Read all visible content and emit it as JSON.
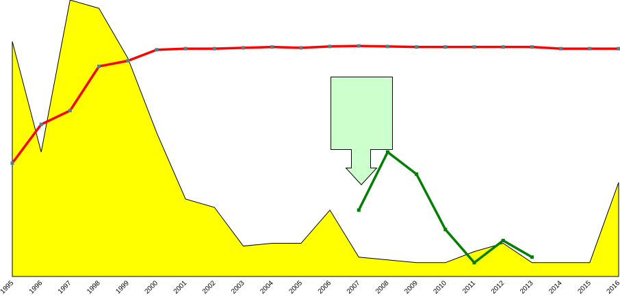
{
  "chart_data": {
    "type": "line",
    "x": [
      "1995",
      "1996",
      "1997",
      "1998",
      "1999",
      "2000",
      "2001",
      "2002",
      "2003",
      "2004",
      "2005",
      "2006",
      "2007",
      "2008",
      "2009",
      "2010",
      "2011",
      "2012",
      "2013",
      "2014",
      "2015",
      "2016"
    ],
    "ylim": [
      0,
      100
    ],
    "series": [
      {
        "kind": "area",
        "color": "#ffff00",
        "values": [
          85,
          45,
          100,
          97,
          79,
          52,
          28,
          25,
          11,
          12,
          12,
          24,
          7,
          6,
          5,
          5,
          9,
          12,
          5,
          5,
          5,
          34
        ]
      },
      {
        "kind": "line",
        "color": "#ff0000",
        "values": [
          41,
          55,
          60,
          76,
          78,
          82,
          82.4,
          82.4,
          82.7,
          83,
          82.7,
          83.2,
          83.4,
          83.2,
          83,
          83,
          83,
          83,
          83,
          82.4,
          82.4,
          82.4
        ]
      },
      {
        "kind": "line",
        "color": "#008000",
        "values": [
          null,
          null,
          null,
          null,
          null,
          null,
          null,
          null,
          null,
          null,
          null,
          null,
          24,
          45,
          37,
          17,
          5,
          13,
          7,
          null,
          null,
          null
        ]
      }
    ]
  }
}
